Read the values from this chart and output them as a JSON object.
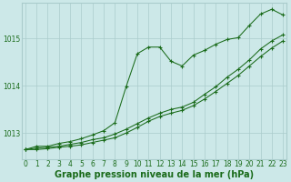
{
  "xlabel": "Graphe pression niveau de la mer (hPa)",
  "bg_color": "#cce8e8",
  "grid_color": "#aacccc",
  "line_color": "#1a6b1a",
  "x_ticks": [
    0,
    1,
    2,
    3,
    4,
    5,
    6,
    7,
    8,
    9,
    10,
    11,
    12,
    13,
    14,
    15,
    16,
    17,
    18,
    19,
    20,
    21,
    22,
    23
  ],
  "y_ticks": [
    1013,
    1014,
    1015
  ],
  "ylim": [
    1012.45,
    1015.75
  ],
  "xlim": [
    -0.3,
    23.3
  ],
  "line1_x": [
    0,
    1,
    2,
    3,
    4,
    5,
    6,
    7,
    8,
    9,
    10,
    11,
    12,
    13,
    14,
    15,
    16,
    17,
    18,
    19,
    20,
    21,
    22,
    23
  ],
  "line1_y": [
    1012.65,
    1012.72,
    1012.72,
    1012.78,
    1012.82,
    1012.88,
    1012.96,
    1013.05,
    1013.22,
    1013.98,
    1014.68,
    1014.82,
    1014.82,
    1014.52,
    1014.42,
    1014.65,
    1014.75,
    1014.88,
    1014.98,
    1015.02,
    1015.28,
    1015.52,
    1015.62,
    1015.5
  ],
  "line2_x": [
    0,
    1,
    2,
    3,
    4,
    5,
    6,
    7,
    8,
    9,
    10,
    11,
    12,
    13,
    14,
    15,
    16,
    17,
    18,
    19,
    20,
    21,
    22,
    23
  ],
  "line2_y": [
    1012.65,
    1012.68,
    1012.7,
    1012.72,
    1012.76,
    1012.8,
    1012.86,
    1012.9,
    1012.98,
    1013.08,
    1013.2,
    1013.32,
    1013.42,
    1013.5,
    1013.55,
    1013.65,
    1013.82,
    1013.98,
    1014.18,
    1014.35,
    1014.55,
    1014.78,
    1014.95,
    1015.08
  ],
  "line3_x": [
    0,
    1,
    2,
    3,
    4,
    5,
    6,
    7,
    8,
    9,
    10,
    11,
    12,
    13,
    14,
    15,
    16,
    17,
    18,
    19,
    20,
    21,
    22,
    23
  ],
  "line3_y": [
    1012.65,
    1012.65,
    1012.67,
    1012.7,
    1012.72,
    1012.75,
    1012.8,
    1012.85,
    1012.9,
    1013.0,
    1013.12,
    1013.25,
    1013.35,
    1013.42,
    1013.48,
    1013.58,
    1013.72,
    1013.88,
    1014.05,
    1014.22,
    1014.42,
    1014.62,
    1014.8,
    1014.95
  ],
  "marker": "+",
  "marker_size": 3.5,
  "marker_lw": 0.8,
  "line_width": 0.75,
  "tick_fontsize": 5.5,
  "label_fontsize": 7.0
}
